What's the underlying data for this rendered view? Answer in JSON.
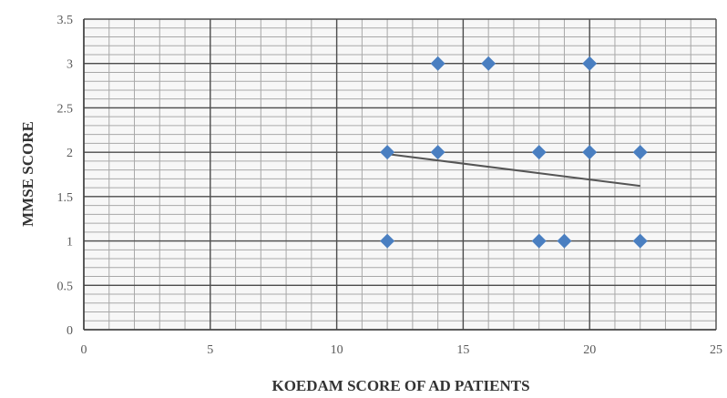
{
  "chart_data": {
    "type": "scatter",
    "title": "",
    "xlabel": "KOEDAM SCORE OF AD PATIENTS",
    "ylabel": "MMSE SCORE",
    "xlim": [
      0,
      25
    ],
    "ylim": [
      0,
      3.5
    ],
    "x_ticks": [
      0,
      5,
      10,
      15,
      20,
      25
    ],
    "y_ticks": [
      0,
      0.5,
      1,
      1.5,
      2,
      2.5,
      3,
      3.5
    ],
    "y_tick_labels": [
      "0",
      "0.5",
      "1",
      "1.5",
      "2",
      "2.5",
      "3",
      "3.5"
    ],
    "grid": true,
    "legend": "none",
    "marker": "diamond",
    "marker_color": "#4a7fc1",
    "points": [
      {
        "x": 12,
        "y": 2
      },
      {
        "x": 12,
        "y": 1
      },
      {
        "x": 14,
        "y": 3
      },
      {
        "x": 14,
        "y": 2
      },
      {
        "x": 16,
        "y": 3
      },
      {
        "x": 18,
        "y": 2
      },
      {
        "x": 18,
        "y": 1
      },
      {
        "x": 19,
        "y": 1
      },
      {
        "x": 20,
        "y": 3
      },
      {
        "x": 20,
        "y": 2
      },
      {
        "x": 22,
        "y": 2
      },
      {
        "x": 22,
        "y": 1
      }
    ],
    "trendline": {
      "x": [
        12,
        22
      ],
      "y": [
        1.98,
        1.62
      ],
      "color": "#555555"
    }
  }
}
